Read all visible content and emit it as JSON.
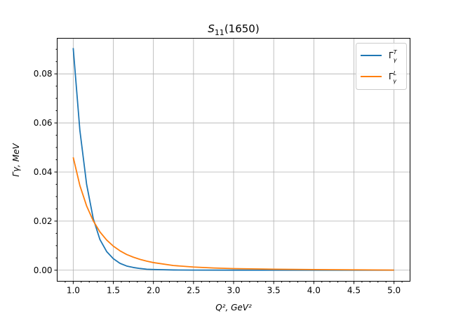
{
  "chart_data": {
    "type": "line",
    "title": "S11(1650)",
    "title_main": "S",
    "title_sub": "11",
    "title_tail": "(1650)",
    "xlabel": "Q², GeV²",
    "ylabel": "Γγ, MeV",
    "xlim": [
      0.8,
      5.2
    ],
    "ylim": [
      -0.0045,
      0.0945
    ],
    "xticks": [
      1.0,
      1.5,
      2.0,
      2.5,
      3.0,
      3.5,
      4.0,
      4.5,
      5.0
    ],
    "xtick_labels": [
      "1.0",
      "1.5",
      "2.0",
      "2.5",
      "3.0",
      "3.5",
      "4.0",
      "4.5",
      "5.0"
    ],
    "yticks": [
      0.0,
      0.02,
      0.04,
      0.06,
      0.08
    ],
    "ytick_labels": [
      "0.00",
      "0.02",
      "0.04",
      "0.06",
      "0.08"
    ],
    "grid": true,
    "legend_position": "top-right",
    "series": [
      {
        "name": "ΓγT",
        "name_main": "Γ",
        "name_sub": "γ",
        "name_sup": "T",
        "color": "#1f77b4",
        "x": [
          1.0,
          1.083,
          1.167,
          1.25,
          1.333,
          1.417,
          1.5,
          1.583,
          1.667,
          1.75,
          1.833,
          1.917,
          2.0,
          2.25,
          2.5,
          3.0,
          3.5,
          4.0,
          4.5,
          5.0
        ],
        "y": [
          0.0905,
          0.057,
          0.035,
          0.021,
          0.0125,
          0.0076,
          0.0047,
          0.0028,
          0.0017,
          0.0011,
          0.0007,
          0.0004,
          0.0003,
          0.0001,
          5e-05,
          2e-05,
          1e-05,
          0.0,
          0.0,
          0.0
        ]
      },
      {
        "name": "ΓγL",
        "name_main": "Γ",
        "name_sub": "γ",
        "name_sup": "L",
        "color": "#ff7f0e",
        "x": [
          1.0,
          1.083,
          1.167,
          1.25,
          1.333,
          1.417,
          1.5,
          1.583,
          1.667,
          1.75,
          1.833,
          1.917,
          2.0,
          2.25,
          2.5,
          2.75,
          3.0,
          3.5,
          4.0,
          4.5,
          5.0
        ],
        "y": [
          0.046,
          0.0345,
          0.0262,
          0.0201,
          0.0156,
          0.0123,
          0.0098,
          0.0079,
          0.0064,
          0.0053,
          0.0044,
          0.0037,
          0.0031,
          0.0019,
          0.0013,
          0.0009,
          0.00065,
          0.0004,
          0.00025,
          0.00015,
          5e-05
        ]
      }
    ]
  }
}
